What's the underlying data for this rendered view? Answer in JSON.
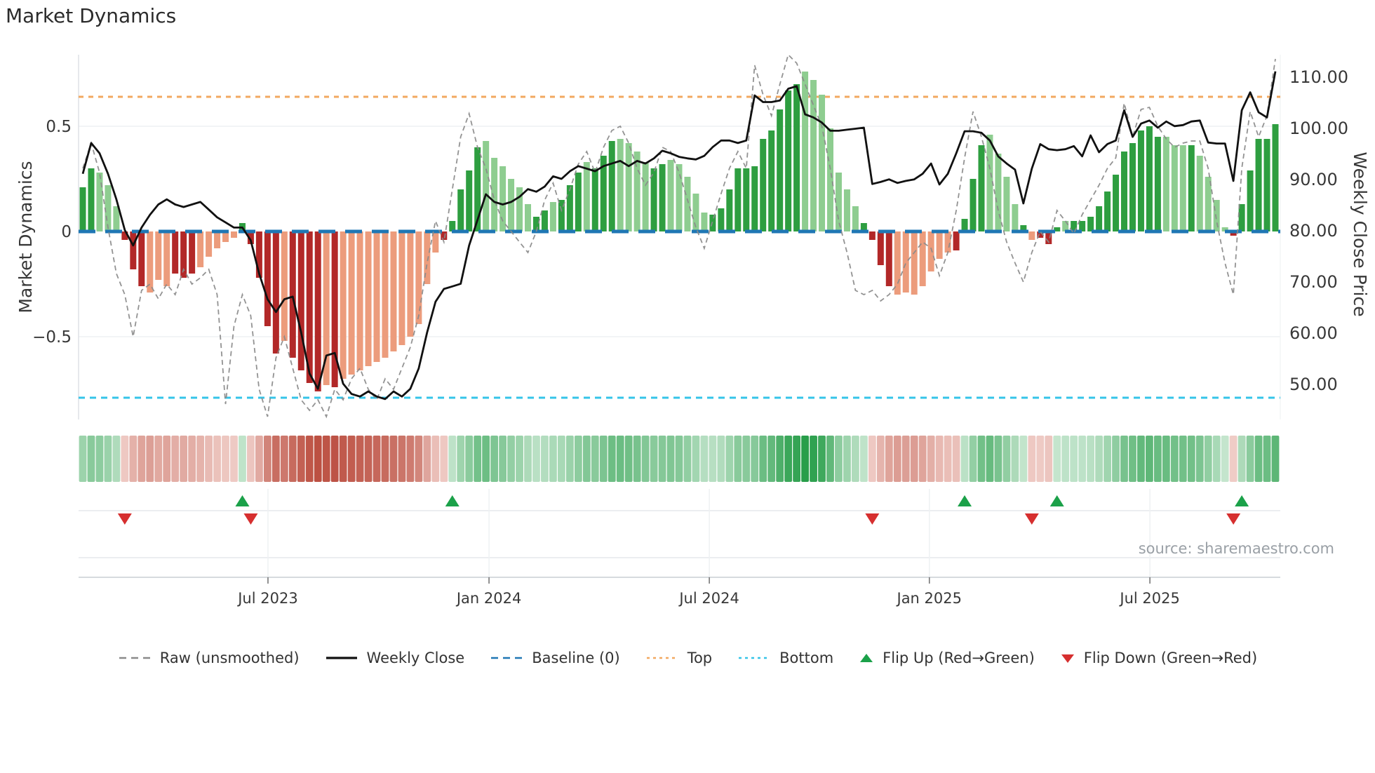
{
  "title": "Market Dynamics",
  "source": "source: sharemaestro.com",
  "left_axis": {
    "label": "Market Dynamics",
    "ticks": [
      {
        "label": "0.5",
        "value": 0.5
      },
      {
        "label": "0",
        "value": 0
      },
      {
        "label": "−0.5",
        "value": -0.5
      }
    ]
  },
  "right_axis": {
    "label": "Weekly Close Price",
    "ticks": [
      {
        "label": "110.00",
        "value": 110
      },
      {
        "label": "100.00",
        "value": 100
      },
      {
        "label": "90.00",
        "value": 90
      },
      {
        "label": "80.00",
        "value": 80
      },
      {
        "label": "70.00",
        "value": 70
      },
      {
        "label": "60.00",
        "value": 60
      },
      {
        "label": "50.00",
        "value": 50
      }
    ]
  },
  "x_axis": {
    "ticks": [
      {
        "label": "Jul 2023",
        "week": 23.05
      },
      {
        "label": "Jan 2024",
        "week": 49.37
      },
      {
        "label": "Jul 2024",
        "week": 75.6
      },
      {
        "label": "Jan 2025",
        "week": 101.8
      },
      {
        "label": "Jul 2025",
        "week": 128.06
      }
    ]
  },
  "legend": [
    {
      "label": "Raw (unsmoothed)",
      "swatch": "dashed-line",
      "color": "#8a8a8a"
    },
    {
      "label": "Weekly Close",
      "swatch": "solid-line",
      "color": "#111111"
    },
    {
      "label": "Baseline (0)",
      "swatch": "dashed-line",
      "color": "#1f77b4"
    },
    {
      "label": "Top",
      "swatch": "dotted-line",
      "color": "#f2a860"
    },
    {
      "label": "Bottom",
      "swatch": "dotted-line",
      "color": "#35c4e8"
    },
    {
      "label": "Flip Up (Red→Green)",
      "swatch": "triangle-up",
      "color": "#1ba149"
    },
    {
      "label": "Flip Down (Green→Red)",
      "swatch": "triangle-down",
      "color": "#d62f2f"
    }
  ],
  "colors": {
    "bar_green_dark": "#2e9e40",
    "bar_green_light": "#8ecd90",
    "bar_red_dark": "#b22828",
    "bar_red_light": "#ec9c7c",
    "baseline": "#1f77b4",
    "top_line": "#f2a860",
    "bottom_line": "#35c4e8",
    "raw_line": "#8a8a8a",
    "close_line": "#111111",
    "flip_up": "#1ba149",
    "flip_down": "#d62f2f",
    "grid": "#eef1f3",
    "band_grid": "#e6e9ec",
    "axis_line": "#c9ced4",
    "tick_text": "#383838"
  },
  "chart_data": {
    "type": "combo-bar-line",
    "title": "Market Dynamics",
    "weeks": 143,
    "left_ylim": [
      -0.89,
      0.84
    ],
    "right_ylim": [
      46,
      112
    ],
    "thresholds": {
      "baseline": 0,
      "top": 0.64,
      "bottom": -0.79
    },
    "flip_up_weeks": [
      20,
      45,
      106,
      117,
      139
    ],
    "flip_down_weeks": [
      6,
      21,
      95,
      114,
      138
    ],
    "bar_shades": "ddllldddllldddllllldddddlddddldlllllllllllldddddlllllldd ldddldddllll ddllllldddddddddddlllllllddddlllllllddddllll dldddlddddddd ddddllldllllddddddd",
    "bar_values": [
      0.21,
      0.3,
      0.28,
      0.22,
      0.12,
      -0.04,
      -0.18,
      -0.26,
      -0.29,
      -0.23,
      -0.26,
      -0.2,
      -0.22,
      -0.2,
      -0.17,
      -0.12,
      -0.08,
      -0.05,
      -0.03,
      0.04,
      -0.06,
      -0.22,
      -0.45,
      -0.58,
      -0.52,
      -0.6,
      -0.66,
      -0.72,
      -0.76,
      -0.73,
      -0.74,
      -0.7,
      -0.68,
      -0.66,
      -0.64,
      -0.62,
      -0.6,
      -0.57,
      -0.54,
      -0.5,
      -0.44,
      -0.25,
      -0.1,
      -0.04,
      0.05,
      0.2,
      0.29,
      0.4,
      0.43,
      0.35,
      0.31,
      0.25,
      0.21,
      0.13,
      0.07,
      0.1,
      0.14,
      0.15,
      0.22,
      0.28,
      0.33,
      0.3,
      0.36,
      0.43,
      0.44,
      0.42,
      0.38,
      0.33,
      0.3,
      0.32,
      0.34,
      0.32,
      0.26,
      0.18,
      0.09,
      0.08,
      0.11,
      0.2,
      0.3,
      0.3,
      0.31,
      0.44,
      0.48,
      0.58,
      0.67,
      0.7,
      0.76,
      0.72,
      0.65,
      0.49,
      0.28,
      0.2,
      0.12,
      0.04,
      -0.04,
      -0.16,
      -0.26,
      -0.3,
      -0.29,
      -0.3,
      -0.26,
      -0.19,
      -0.13,
      -0.1,
      -0.09,
      0.06,
      0.25,
      0.41,
      0.46,
      0.37,
      0.26,
      0.13,
      0.03,
      -0.04,
      -0.03,
      -0.06,
      0.02,
      0.05,
      0.05,
      0.05,
      0.07,
      0.12,
      0.19,
      0.27,
      0.38,
      0.42,
      0.48,
      0.5,
      0.45,
      0.45,
      0.41,
      0.41,
      0.41,
      0.36,
      0.26,
      0.15,
      0.02,
      -0.02,
      0.13,
      0.29,
      0.44,
      0.44,
      0.51
    ],
    "weekly_close": [
      91,
      97,
      95,
      91,
      86,
      80,
      77,
      80.5,
      83,
      85,
      86,
      85,
      84.5,
      85,
      85.5,
      84,
      82.5,
      81.5,
      80.5,
      80.5,
      78,
      71.5,
      66.5,
      64,
      66.5,
      67,
      60,
      52,
      49,
      55.5,
      56,
      50,
      48,
      47.5,
      48.5,
      47.5,
      47,
      48.5,
      47.5,
      49,
      53,
      60,
      66,
      68.5,
      69,
      69.5,
      77,
      82,
      87,
      85.5,
      85,
      85.5,
      86.5,
      88,
      87.5,
      88.5,
      90.5,
      90,
      91.5,
      92.5,
      92,
      91.5,
      92.5,
      93,
      93.5,
      92.5,
      93.5,
      93,
      94,
      95.5,
      95,
      94.3,
      94,
      93.8,
      94.5,
      96.2,
      97.5,
      97.5,
      97,
      97.5,
      106.3,
      105,
      105,
      105.3,
      107.6,
      108.1,
      102.6,
      102,
      101,
      99.4,
      99.4,
      99.6,
      99.8,
      100,
      89,
      89.4,
      89.9,
      89.2,
      89.6,
      89.9,
      91,
      93,
      88.9,
      91,
      95,
      99.3,
      99.3,
      99,
      97.5,
      94.4,
      93,
      91.8,
      85.2,
      92,
      96.8,
      95.8,
      95.6,
      95.8,
      96.4,
      94.4,
      98.5,
      95.2,
      96.8,
      97.5,
      103.4,
      98.2,
      100.8,
      101.4,
      100,
      101.2,
      100.3,
      100.5,
      101.2,
      101.4,
      97.1,
      96.9,
      96.9,
      89.6,
      103.4,
      106.9,
      103,
      102,
      111
    ],
    "raw": [
      0.3,
      0.42,
      0.28,
      0.02,
      -0.2,
      -0.3,
      -0.5,
      -0.28,
      -0.25,
      -0.32,
      -0.25,
      -0.3,
      -0.18,
      -0.25,
      -0.22,
      -0.18,
      -0.3,
      -0.82,
      -0.45,
      -0.3,
      -0.4,
      -0.75,
      -0.88,
      -0.6,
      -0.5,
      -0.65,
      -0.8,
      -0.85,
      -0.8,
      -0.88,
      -0.75,
      -0.8,
      -0.7,
      -0.65,
      -0.75,
      -0.8,
      -0.7,
      -0.75,
      -0.65,
      -0.55,
      -0.4,
      -0.15,
      0.05,
      -0.05,
      0.2,
      0.45,
      0.56,
      0.4,
      0.3,
      0.15,
      0.05,
      0.0,
      -0.05,
      -0.1,
      0.0,
      0.15,
      0.23,
      0.1,
      0.2,
      0.32,
      0.38,
      0.28,
      0.4,
      0.48,
      0.5,
      0.42,
      0.3,
      0.22,
      0.28,
      0.4,
      0.38,
      0.28,
      0.15,
      0.02,
      -0.08,
      0.05,
      0.18,
      0.3,
      0.38,
      0.3,
      0.79,
      0.65,
      0.55,
      0.7,
      0.84,
      0.8,
      0.7,
      0.6,
      0.5,
      0.3,
      0.05,
      -0.1,
      -0.28,
      -0.3,
      -0.28,
      -0.33,
      -0.3,
      -0.25,
      -0.15,
      -0.1,
      -0.05,
      -0.08,
      -0.21,
      -0.1,
      0.1,
      0.35,
      0.57,
      0.45,
      0.3,
      0.1,
      -0.05,
      -0.15,
      -0.24,
      -0.1,
      0.0,
      -0.05,
      0.1,
      0.05,
      -0.01,
      0.08,
      0.15,
      0.22,
      0.3,
      0.35,
      0.61,
      0.45,
      0.58,
      0.59,
      0.5,
      0.44,
      0.4,
      0.42,
      0.43,
      0.43,
      0.3,
      0.05,
      -0.15,
      -0.3,
      0.3,
      0.57,
      0.45,
      0.55,
      0.82
    ]
  }
}
